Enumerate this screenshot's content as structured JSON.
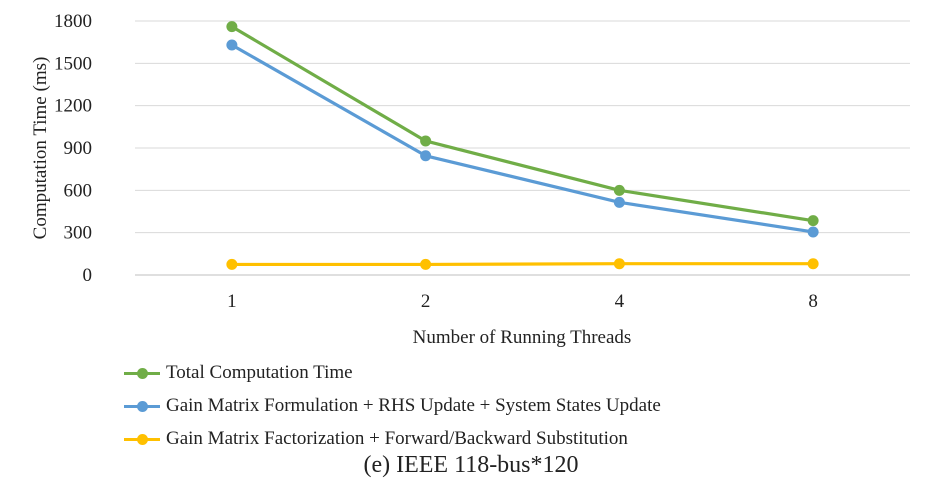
{
  "chart_data": {
    "type": "line",
    "xlabel": "Number of Running Threads",
    "ylabel": "Computation Time (ms)",
    "categories": [
      "1",
      "2",
      "4",
      "8"
    ],
    "ylim": [
      0,
      1800
    ],
    "yticks": [
      0,
      300,
      600,
      900,
      1200,
      1500,
      1800
    ],
    "grid": true,
    "legend_position": "bottom-left",
    "series": [
      {
        "name": "Total Computation Time",
        "color": "#70ad47",
        "values": [
          1760,
          950,
          600,
          385
        ]
      },
      {
        "name": "Gain Matrix Formulation + RHS Update + System States Update",
        "color": "#5b9bd5",
        "values": [
          1630,
          845,
          515,
          305
        ]
      },
      {
        "name": "Gain Matrix Factorization + Forward/Backward Substitution",
        "color": "#ffc000",
        "values": [
          75,
          75,
          80,
          80
        ]
      }
    ]
  },
  "caption": "(e) IEEE 118-bus*120"
}
